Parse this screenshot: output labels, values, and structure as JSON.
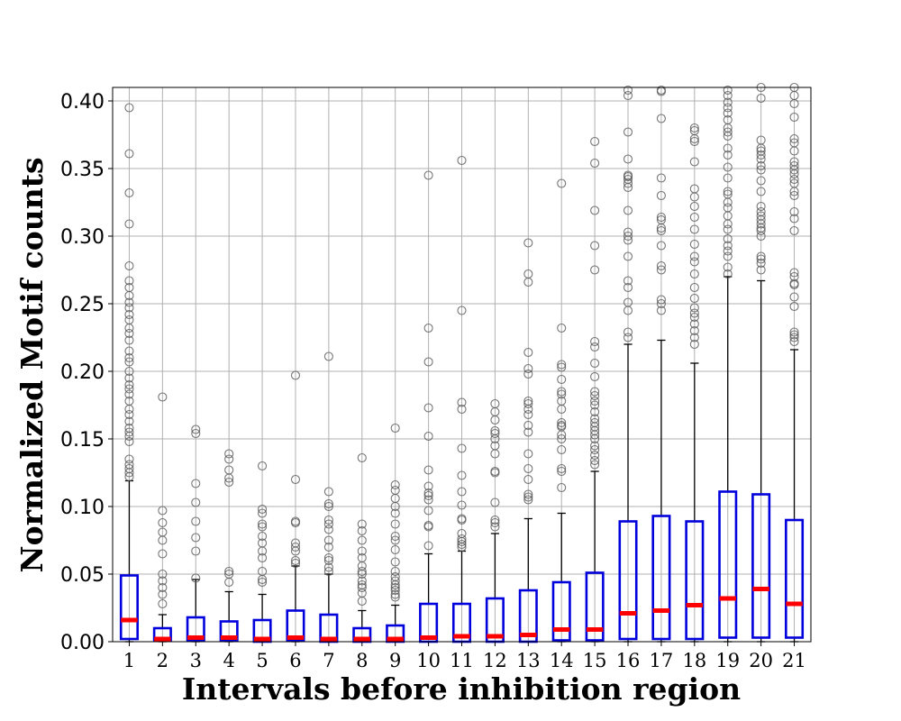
{
  "chart_data": {
    "type": "box",
    "xlabel": "Intervals before inhibition region",
    "ylabel": "Normalized Motif counts",
    "ylim": [
      0,
      0.41
    ],
    "yticks": [
      0.0,
      0.05,
      0.1,
      0.15,
      0.2,
      0.25,
      0.3,
      0.35,
      0.4
    ],
    "ytick_labels": [
      "0.00",
      "0.05",
      "0.10",
      "0.15",
      "0.20",
      "0.25",
      "0.30",
      "0.35",
      "0.40"
    ],
    "categories": [
      "1",
      "2",
      "3",
      "4",
      "5",
      "6",
      "7",
      "8",
      "9",
      "10",
      "11",
      "12",
      "13",
      "14",
      "15",
      "16",
      "17",
      "18",
      "19",
      "20",
      "21"
    ],
    "grid": true,
    "colors": {
      "box": "#0000dd",
      "median": "#ff0000",
      "whisker": "#000000",
      "flier": "#555555",
      "grid": "#b0b0b0"
    },
    "boxes": [
      {
        "q1": 0.002,
        "median": 0.016,
        "q3": 0.049,
        "whislo": 0,
        "whishi": 0.119,
        "fliers": [
          0.122,
          0.125,
          0.128,
          0.131,
          0.135,
          0.148,
          0.152,
          0.155,
          0.158,
          0.163,
          0.168,
          0.172,
          0.178,
          0.183,
          0.187,
          0.19,
          0.195,
          0.2,
          0.207,
          0.21,
          0.215,
          0.223,
          0.228,
          0.232,
          0.238,
          0.242,
          0.247,
          0.251,
          0.256,
          0.262,
          0.267,
          0.278,
          0.309,
          0.332,
          0.361,
          0.395
        ]
      },
      {
        "q1": 0.001,
        "median": 0.002,
        "q3": 0.01,
        "whislo": 0,
        "whishi": 0.02,
        "fliers": [
          0.028,
          0.035,
          0.04,
          0.045,
          0.05,
          0.065,
          0.075,
          0.081,
          0.088,
          0.097,
          0.181
        ]
      },
      {
        "q1": 0.001,
        "median": 0.003,
        "q3": 0.018,
        "whislo": 0,
        "whishi": 0.046,
        "fliers": [
          0.047,
          0.067,
          0.077,
          0.089,
          0.103,
          0.117,
          0.154,
          0.157
        ]
      },
      {
        "q1": 0.001,
        "median": 0.003,
        "q3": 0.015,
        "whislo": 0,
        "whishi": 0.037,
        "fliers": [
          0.044,
          0.05,
          0.052,
          0.118,
          0.121,
          0.127,
          0.135,
          0.139
        ]
      },
      {
        "q1": 0.0,
        "median": 0.002,
        "q3": 0.016,
        "whislo": 0,
        "whishi": 0.035,
        "fliers": [
          0.044,
          0.046,
          0.052,
          0.062,
          0.067,
          0.073,
          0.078,
          0.085,
          0.087,
          0.095,
          0.098,
          0.13
        ]
      },
      {
        "q1": 0.001,
        "median": 0.003,
        "q3": 0.023,
        "whislo": 0,
        "whishi": 0.056,
        "fliers": [
          0.058,
          0.06,
          0.067,
          0.07,
          0.073,
          0.088,
          0.089,
          0.12,
          0.197
        ]
      },
      {
        "q1": 0.0,
        "median": 0.002,
        "q3": 0.02,
        "whislo": 0,
        "whishi": 0.05,
        "fliers": [
          0.052,
          0.055,
          0.06,
          0.062,
          0.07,
          0.075,
          0.083,
          0.087,
          0.09,
          0.1,
          0.102,
          0.111,
          0.211
        ]
      },
      {
        "q1": 0.0,
        "median": 0.002,
        "q3": 0.01,
        "whislo": 0,
        "whishi": 0.023,
        "fliers": [
          0.03,
          0.036,
          0.04,
          0.042,
          0.045,
          0.05,
          0.052,
          0.056,
          0.062,
          0.067,
          0.075,
          0.082,
          0.087,
          0.136
        ]
      },
      {
        "q1": 0.0,
        "median": 0.002,
        "q3": 0.012,
        "whislo": 0,
        "whishi": 0.027,
        "fliers": [
          0.033,
          0.035,
          0.038,
          0.04,
          0.042,
          0.045,
          0.048,
          0.052,
          0.059,
          0.068,
          0.075,
          0.078,
          0.087,
          0.095,
          0.1,
          0.106,
          0.112,
          0.116,
          0.158
        ]
      },
      {
        "q1": 0.0,
        "median": 0.003,
        "q3": 0.028,
        "whislo": 0,
        "whishi": 0.065,
        "fliers": [
          0.071,
          0.085,
          0.086,
          0.097,
          0.105,
          0.108,
          0.11,
          0.115,
          0.127,
          0.152,
          0.173,
          0.207,
          0.232,
          0.345
        ]
      },
      {
        "q1": 0.0,
        "median": 0.004,
        "q3": 0.028,
        "whislo": 0,
        "whishi": 0.067,
        "fliers": [
          0.07,
          0.072,
          0.074,
          0.076,
          0.08,
          0.09,
          0.091,
          0.101,
          0.111,
          0.123,
          0.143,
          0.172,
          0.177,
          0.245,
          0.356
        ]
      },
      {
        "q1": 0.0,
        "median": 0.004,
        "q3": 0.032,
        "whislo": 0,
        "whishi": 0.08,
        "fliers": [
          0.085,
          0.088,
          0.09,
          0.103,
          0.125,
          0.126,
          0.139,
          0.145,
          0.15,
          0.154,
          0.156,
          0.164,
          0.17,
          0.176
        ]
      },
      {
        "q1": 0.0,
        "median": 0.005,
        "q3": 0.038,
        "whislo": 0,
        "whishi": 0.091,
        "fliers": [
          0.105,
          0.107,
          0.109,
          0.12,
          0.128,
          0.139,
          0.155,
          0.16,
          0.168,
          0.172,
          0.176,
          0.178,
          0.198,
          0.202,
          0.214,
          0.266,
          0.272,
          0.295
        ]
      },
      {
        "q1": 0.001,
        "median": 0.009,
        "q3": 0.044,
        "whislo": 0,
        "whishi": 0.095,
        "fliers": [
          0.114,
          0.126,
          0.128,
          0.142,
          0.15,
          0.153,
          0.159,
          0.16,
          0.162,
          0.172,
          0.178,
          0.183,
          0.185,
          0.194,
          0.203,
          0.205,
          0.232,
          0.339
        ]
      },
      {
        "q1": 0.001,
        "median": 0.009,
        "q3": 0.051,
        "whislo": 0,
        "whishi": 0.126,
        "fliers": [
          0.131,
          0.134,
          0.138,
          0.142,
          0.145,
          0.15,
          0.153,
          0.156,
          0.159,
          0.162,
          0.165,
          0.17,
          0.175,
          0.178,
          0.182,
          0.185,
          0.196,
          0.206,
          0.218,
          0.222,
          0.275,
          0.293,
          0.319,
          0.354,
          0.37
        ]
      },
      {
        "q1": 0.002,
        "median": 0.021,
        "q3": 0.089,
        "whislo": 0,
        "whishi": 0.22,
        "fliers": [
          0.225,
          0.229,
          0.245,
          0.251,
          0.262,
          0.267,
          0.285,
          0.297,
          0.3,
          0.303,
          0.319,
          0.336,
          0.339,
          0.342,
          0.344,
          0.345,
          0.357,
          0.377,
          0.404,
          0.408
        ]
      },
      {
        "q1": 0.002,
        "median": 0.023,
        "q3": 0.093,
        "whislo": 0,
        "whishi": 0.223,
        "fliers": [
          0.245,
          0.25,
          0.253,
          0.275,
          0.278,
          0.293,
          0.304,
          0.306,
          0.312,
          0.314,
          0.33,
          0.343,
          0.387,
          0.407,
          0.408
        ]
      },
      {
        "q1": 0.002,
        "median": 0.027,
        "q3": 0.089,
        "whislo": 0,
        "whishi": 0.206,
        "fliers": [
          0.22,
          0.225,
          0.23,
          0.235,
          0.24,
          0.243,
          0.247,
          0.254,
          0.262,
          0.272,
          0.281,
          0.285,
          0.294,
          0.305,
          0.314,
          0.322,
          0.329,
          0.335,
          0.355,
          0.37,
          0.372,
          0.378,
          0.38
        ]
      },
      {
        "q1": 0.003,
        "median": 0.032,
        "q3": 0.111,
        "whislo": 0,
        "whishi": 0.27,
        "fliers": [
          0.272,
          0.277,
          0.285,
          0.289,
          0.293,
          0.298,
          0.305,
          0.309,
          0.315,
          0.321,
          0.325,
          0.331,
          0.333,
          0.343,
          0.351,
          0.36,
          0.365,
          0.374,
          0.377,
          0.38,
          0.386,
          0.391,
          0.395,
          0.399,
          0.404,
          0.408
        ]
      },
      {
        "q1": 0.003,
        "median": 0.039,
        "q3": 0.109,
        "whislo": 0,
        "whishi": 0.267,
        "fliers": [
          0.275,
          0.28,
          0.283,
          0.285,
          0.3,
          0.304,
          0.306,
          0.309,
          0.312,
          0.315,
          0.318,
          0.322,
          0.333,
          0.341,
          0.349,
          0.352,
          0.357,
          0.36,
          0.363,
          0.365,
          0.371,
          0.402,
          0.41
        ]
      },
      {
        "q1": 0.003,
        "median": 0.028,
        "q3": 0.09,
        "whislo": 0,
        "whishi": 0.216,
        "fliers": [
          0.222,
          0.225,
          0.227,
          0.229,
          0.248,
          0.255,
          0.264,
          0.265,
          0.27,
          0.273,
          0.304,
          0.313,
          0.318,
          0.33,
          0.333,
          0.339,
          0.342,
          0.346,
          0.349,
          0.352,
          0.355,
          0.363,
          0.369,
          0.372,
          0.388,
          0.398,
          0.404,
          0.41
        ]
      }
    ]
  }
}
